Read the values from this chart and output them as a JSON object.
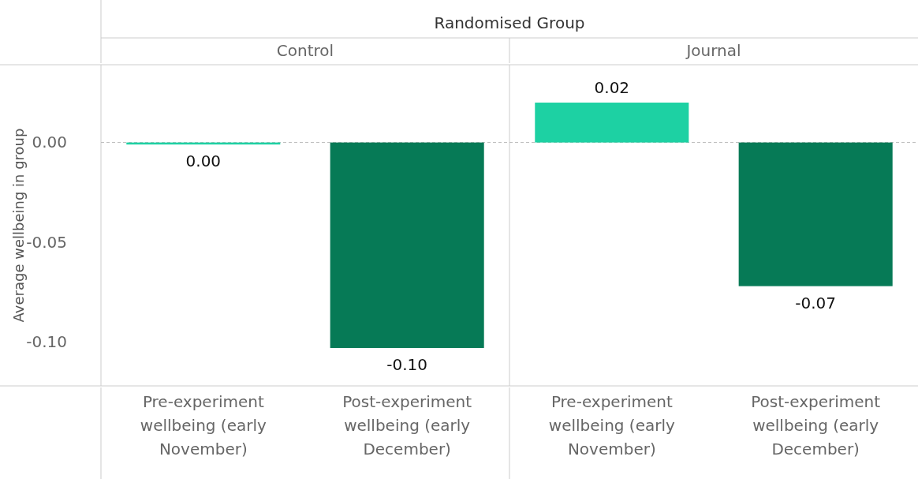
{
  "chart_data": [
    {
      "type": "bar",
      "title": "Control",
      "ylabel": "Average wellbeing in group",
      "annotations": [
        "Randomised Group"
      ],
      "categories": [
        "Pre-experiment wellbeing (early November)",
        "Post-experiment wellbeing (early December)"
      ],
      "values": [
        -0.001,
        -0.103
      ],
      "colors": [
        "#1dd1a3",
        "#067a56"
      ],
      "value_labels": [
        "0.00",
        "-0.10"
      ],
      "ylim": [
        -0.122,
        0.039
      ],
      "yticks": [
        {
          "value": 0,
          "label": "0.00"
        },
        {
          "value": -0.05,
          "label": "-0.05"
        },
        {
          "value": -0.1,
          "label": "-0.10"
        }
      ],
      "ref_lines": [
        {
          "axis": "y",
          "value": 0,
          "color": "#bbbbbb",
          "line_style": "dashed"
        }
      ]
    },
    {
      "type": "bar",
      "title": "Journal",
      "tick_labels": "x",
      "categories": [
        "Pre-experiment wellbeing (early November)",
        "Post-experiment wellbeing (early December)"
      ],
      "values": [
        0.02,
        -0.072
      ],
      "colors": [
        "#1dd1a3",
        "#067a56"
      ],
      "value_labels": [
        "0.02",
        "-0.07"
      ],
      "ylim": [
        -0.122,
        0.039
      ],
      "ref_lines": [
        {
          "axis": "y",
          "value": 0,
          "color": "#bbbbbb",
          "line_style": "dashed"
        }
      ]
    }
  ]
}
